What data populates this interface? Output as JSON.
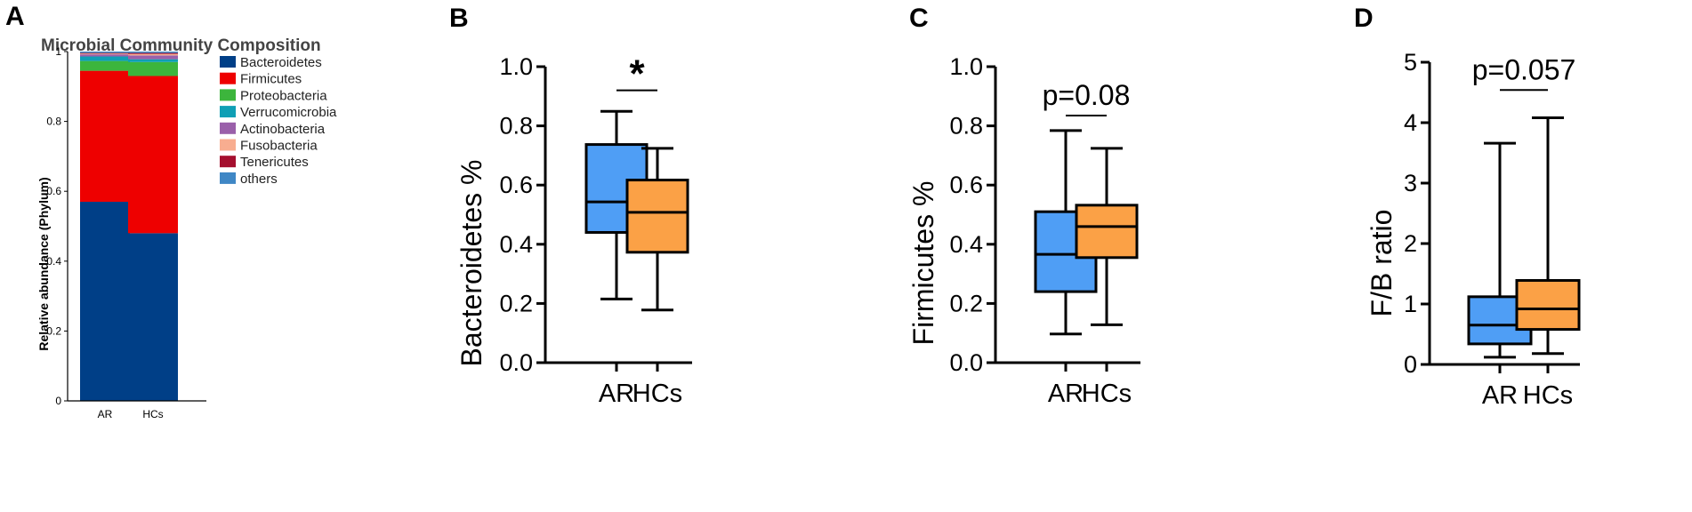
{
  "chart_data": [
    {
      "panel": "A",
      "type": "bar",
      "stacked": true,
      "title": "Microbial Community Composition",
      "xlabel": "",
      "ylabel": "Relative abundance  (Phylum)",
      "ylim": [
        0,
        1
      ],
      "yticks": [
        "0",
        "0.2",
        "0.4",
        "0.6",
        "0.8",
        "1"
      ],
      "categories": [
        "AR",
        "HCs"
      ],
      "legend_position": "right",
      "series": [
        {
          "name": "Bacteroidetes",
          "color": "#003F87",
          "values": [
            0.57,
            0.48
          ]
        },
        {
          "name": "Firmicutes",
          "color": "#EE0000",
          "values": [
            0.375,
            0.45
          ]
        },
        {
          "name": "Proteobacteria",
          "color": "#3CB53C",
          "values": [
            0.028,
            0.04
          ]
        },
        {
          "name": "Verrucomicrobia",
          "color": "#0F9FB5",
          "values": [
            0.013,
            0.008
          ]
        },
        {
          "name": "Actinobacteria",
          "color": "#9A60AA",
          "values": [
            0.006,
            0.011
          ]
        },
        {
          "name": "Fusobacteria",
          "color": "#F8AD90",
          "values": [
            0.002,
            0.004
          ]
        },
        {
          "name": "Tenericutes",
          "color": "#A50F2E",
          "values": [
            0.002,
            0.003
          ]
        },
        {
          "name": "others",
          "color": "#3F87C5",
          "values": [
            0.004,
            0.004
          ]
        }
      ]
    },
    {
      "panel": "B",
      "type": "box",
      "ylabel": "Bacteroidetes %",
      "ylim": [
        0,
        1
      ],
      "yticks": [
        "0.0",
        "0.2",
        "0.4",
        "0.6",
        "0.8",
        "1.0"
      ],
      "categories": [
        "AR",
        "HCs"
      ],
      "colors": [
        "#4F9EF5",
        "#FBA146"
      ],
      "boxes": [
        {
          "min": 0.215,
          "q1": 0.44,
          "median": 0.543,
          "q3": 0.737,
          "max": 0.849
        },
        {
          "min": 0.178,
          "q1": 0.373,
          "median": 0.508,
          "q3": 0.617,
          "max": 0.724
        }
      ],
      "annotation": {
        "text": "*",
        "y": 0.92
      },
      "annotation_type": "star"
    },
    {
      "panel": "C",
      "type": "box",
      "ylabel": "Firmicutes %",
      "ylim": [
        0,
        1
      ],
      "yticks": [
        "0.0",
        "0.2",
        "0.4",
        "0.6",
        "0.8",
        "1.0"
      ],
      "categories": [
        "AR",
        "HCs"
      ],
      "colors": [
        "#4F9EF5",
        "#FBA146"
      ],
      "boxes": [
        {
          "min": 0.097,
          "q1": 0.24,
          "median": 0.366,
          "q3": 0.51,
          "max": 0.784
        },
        {
          "min": 0.128,
          "q1": 0.355,
          "median": 0.46,
          "q3": 0.532,
          "max": 0.724
        }
      ],
      "annotation": {
        "text": "p=0.08",
        "y": 0.835
      },
      "annotation_type": "text"
    },
    {
      "panel": "D",
      "type": "box",
      "ylabel": "F/B ratio",
      "ylim": [
        0,
        5
      ],
      "yticks": [
        "0",
        "1",
        "2",
        "3",
        "4",
        "5"
      ],
      "categories": [
        "AR",
        "HCs"
      ],
      "colors": [
        "#4F9EF5",
        "#FBA146"
      ],
      "boxes": [
        {
          "min": 0.12,
          "q1": 0.34,
          "median": 0.65,
          "q3": 1.12,
          "max": 3.66
        },
        {
          "min": 0.18,
          "q1": 0.58,
          "median": 0.92,
          "q3": 1.39,
          "max": 4.08
        }
      ],
      "annotation": {
        "text": "p=0.057",
        "y": 4.54
      },
      "annotation_type": "text"
    }
  ],
  "panel_letters": [
    "A",
    "B",
    "C",
    "D"
  ]
}
